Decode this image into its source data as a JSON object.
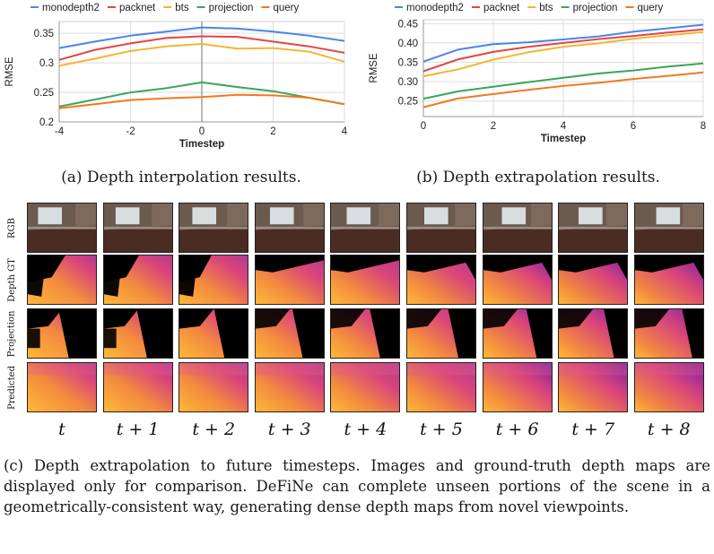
{
  "colors": {
    "monodepth2": "#4a86e8",
    "packnet": "#e04646",
    "bts": "#f2b632",
    "projection": "#3aa657",
    "query": "#f07a1e"
  },
  "chart_data": [
    {
      "type": "line",
      "xlabel": "Timestep",
      "ylabel": "RMSE",
      "xlim": [
        -4,
        4
      ],
      "ylim": [
        0.2,
        0.37
      ],
      "xticks": [
        "-4",
        "-2",
        "0",
        "2",
        "4"
      ],
      "yticks": [
        "0.2",
        "0.25",
        "0.3",
        "0.35"
      ],
      "grid": true,
      "legend": "top",
      "x": [
        -4,
        -3,
        -2,
        -1,
        0,
        1,
        2,
        3,
        4
      ],
      "series": [
        {
          "name": "monodepth2",
          "values": [
            0.325,
            0.336,
            0.346,
            0.353,
            0.36,
            0.358,
            0.353,
            0.346,
            0.337
          ]
        },
        {
          "name": "packnet",
          "values": [
            0.305,
            0.322,
            0.333,
            0.342,
            0.345,
            0.344,
            0.336,
            0.328,
            0.317
          ]
        },
        {
          "name": "bts",
          "values": [
            0.295,
            0.307,
            0.32,
            0.328,
            0.332,
            0.324,
            0.325,
            0.319,
            0.302
          ]
        },
        {
          "name": "projection",
          "values": [
            0.226,
            0.238,
            0.25,
            0.257,
            0.267,
            0.259,
            0.252,
            0.241,
            0.23
          ]
        },
        {
          "name": "query",
          "values": [
            0.223,
            0.23,
            0.237,
            0.24,
            0.242,
            0.246,
            0.245,
            0.241,
            0.23
          ]
        }
      ]
    },
    {
      "type": "line",
      "xlabel": "Timestep",
      "ylabel": "RMSE",
      "xlim": [
        0,
        8
      ],
      "ylim": [
        0.21,
        0.46
      ],
      "xticks": [
        "0",
        "2",
        "4",
        "6",
        "8"
      ],
      "yticks": [
        "0.25",
        "0.30",
        "0.35",
        "0.40",
        "0.45"
      ],
      "grid": true,
      "legend": "top",
      "x": [
        0,
        1,
        2,
        3,
        4,
        5,
        6,
        7,
        8
      ],
      "series": [
        {
          "name": "monodepth2",
          "values": [
            0.352,
            0.383,
            0.397,
            0.402,
            0.409,
            0.417,
            0.429,
            0.438,
            0.447
          ]
        },
        {
          "name": "packnet",
          "values": [
            0.327,
            0.358,
            0.377,
            0.39,
            0.4,
            0.41,
            0.418,
            0.427,
            0.435
          ]
        },
        {
          "name": "bts",
          "values": [
            0.314,
            0.332,
            0.357,
            0.376,
            0.39,
            0.399,
            0.411,
            0.42,
            0.428
          ]
        },
        {
          "name": "projection",
          "values": [
            0.256,
            0.275,
            0.287,
            0.299,
            0.31,
            0.321,
            0.329,
            0.339,
            0.347
          ]
        },
        {
          "name": "query",
          "values": [
            0.234,
            0.257,
            0.268,
            0.279,
            0.289,
            0.297,
            0.307,
            0.315,
            0.324
          ]
        }
      ]
    }
  ],
  "captions": {
    "a": "(a) Depth interpolation results.",
    "b": "(b) Depth extrapolation results.",
    "c": "(c) Depth extrapolation to future timesteps. Images and ground-truth depth maps are displayed only for comparison. DeFiNe can complete unseen portions of the scene in a geometrically-consistent way, generating dense depth maps from novel viewpoints."
  },
  "grid": {
    "row_labels": [
      "RGB",
      "Depth GT",
      "Projection",
      "Predicted"
    ],
    "time_labels": [
      "t",
      "t + 1",
      "t + 2",
      "t + 3",
      "t + 4",
      "t + 5",
      "t + 6",
      "t + 7",
      "t + 8"
    ]
  }
}
